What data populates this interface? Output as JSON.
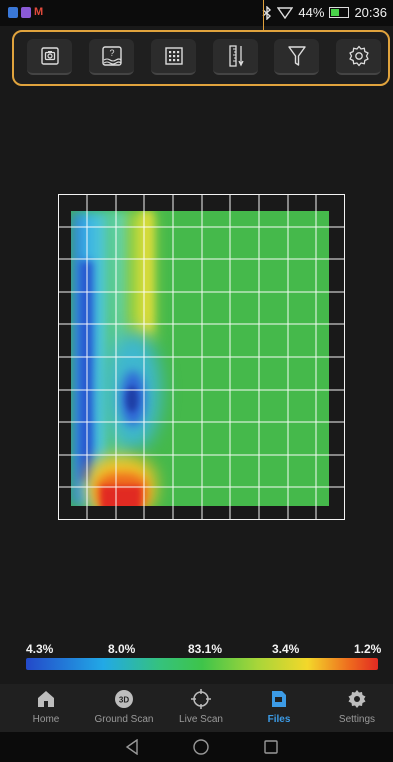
{
  "status_bar": {
    "battery": "44%",
    "time": "20:36",
    "icons": [
      "bluetooth-icon",
      "wifi-icon",
      "battery-icon"
    ],
    "notification_icons": [
      "app-icon-blue",
      "app-icon-purple",
      "gmail-icon"
    ]
  },
  "toolbar": {
    "buttons": [
      {
        "name": "camera-capture",
        "icon": "camera-icon"
      },
      {
        "name": "ground-help",
        "icon": "ground-question-icon"
      },
      {
        "name": "grid-view",
        "icon": "grid-icon"
      },
      {
        "name": "depth-ruler",
        "icon": "ruler-depth-icon"
      },
      {
        "name": "filter",
        "icon": "filter-icon"
      },
      {
        "name": "settings",
        "icon": "gear-icon"
      }
    ],
    "highlight_color": "#e0a33d"
  },
  "legend": {
    "labels": [
      "4.3%",
      "8.0%",
      "83.1%",
      "3.4%",
      "1.2%"
    ],
    "values": [
      4.3,
      8.0,
      83.1,
      3.4,
      1.2
    ],
    "colors": [
      "#2349c9",
      "#22a9e6",
      "#3ec44a",
      "#f3d72a",
      "#e12a22"
    ]
  },
  "bottom_nav": {
    "items": [
      {
        "label": "Home",
        "icon": "home-icon",
        "active": false
      },
      {
        "label": "Ground Scan",
        "icon": "ground-scan-3d-icon",
        "active": false
      },
      {
        "label": "Live Scan",
        "icon": "crosshair-icon",
        "active": false
      },
      {
        "label": "Files",
        "icon": "files-icon",
        "active": true
      },
      {
        "label": "Settings",
        "icon": "settings-gear-icon",
        "active": false
      }
    ],
    "active_color": "#3c9be6"
  },
  "system_nav": {
    "buttons": [
      "back-icon",
      "home-circle-icon",
      "recents-icon"
    ]
  }
}
